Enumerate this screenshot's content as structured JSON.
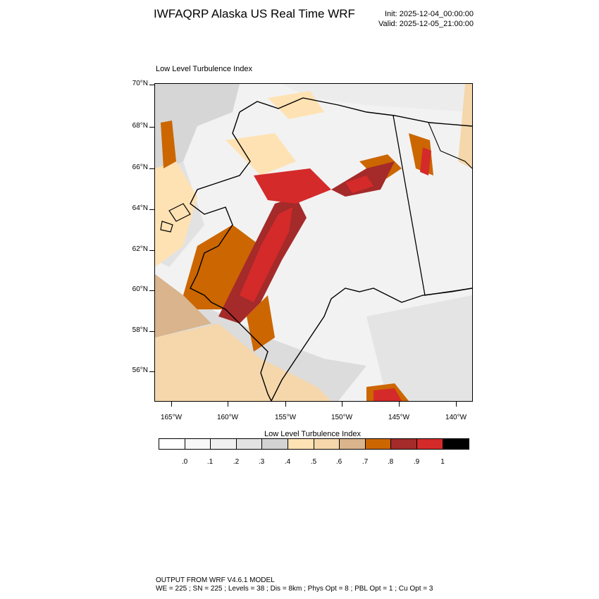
{
  "header": {
    "title": "IWFAQRP Alaska US Real Time WRF",
    "init": "Init: 2025-12-04_00:00:00",
    "valid": "Valid: 2025-12-05_21:00:00"
  },
  "map": {
    "field_title": "Low Level Turbulence Index",
    "lat_labels": [
      "70°N",
      "68°N",
      "66°N",
      "64°N",
      "62°N",
      "60°N",
      "58°N",
      "56°N"
    ],
    "lon_labels": [
      "165°W",
      "160°W",
      "155°W",
      "150°W",
      "145°W",
      "140°W"
    ]
  },
  "legend": {
    "title": "Low Level Turbulence Index",
    "colors": [
      "#ffffff",
      "#f8f8f8",
      "#f0f0f0",
      "#e2e2e2",
      "#d3d3d3",
      "#ffe2b3",
      "#f5d7ab",
      "#d9b48c",
      "#cc6600",
      "#a52a2a",
      "#d42a2a",
      "#000000"
    ],
    "labels": [
      ".0",
      ".1",
      ".2",
      ".3",
      ".4",
      ".5",
      ".6",
      ".7",
      ".8",
      ".9",
      "1"
    ]
  },
  "footer": {
    "line1": "OUTPUT FROM WRF V4.6.1 MODEL",
    "line2": "WE = 225 ; SN = 225 ; Levels = 38 ; Dis = 8km ; Phys Opt = 8 ; PBL Opt = 1 ; Cu Opt = 3"
  }
}
